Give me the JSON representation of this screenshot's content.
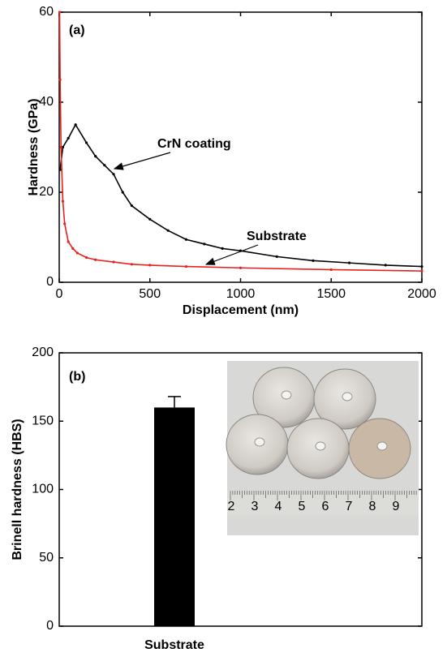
{
  "chart_data": [
    {
      "type": "line",
      "x_label": "Displacement (nm)",
      "y_label": "Hardness (GPa)",
      "annotations": [
        "(a)",
        "CrN coating",
        "Substrate"
      ],
      "xlim": [
        0,
        2000
      ],
      "xticks": [
        0,
        500,
        1000,
        1500,
        2000
      ],
      "ylim": [
        0,
        60
      ],
      "yticks": [
        0,
        20,
        40,
        60
      ],
      "series": [
        {
          "name": "CrN coating",
          "color": "#000000",
          "x": [
            5,
            20,
            50,
            90,
            150,
            200,
            250,
            300,
            350,
            400,
            500,
            600,
            700,
            800,
            900,
            1000,
            1200,
            1400,
            1600,
            1800,
            2000
          ],
          "values": [
            25,
            30,
            32,
            35,
            31,
            28,
            26,
            24,
            20,
            17,
            14,
            11.5,
            9.5,
            8.5,
            7.5,
            7,
            5.7,
            4.8,
            4.3,
            3.8,
            3.5
          ]
        },
        {
          "name": "Substrate",
          "color": "#e8211f",
          "x": [
            2,
            5,
            10,
            20,
            30,
            50,
            75,
            100,
            150,
            200,
            300,
            400,
            500,
            700,
            1000,
            1500,
            2000
          ],
          "values": [
            60,
            45,
            30,
            18,
            13,
            9,
            7.5,
            6.5,
            5.5,
            5,
            4.5,
            4,
            3.8,
            3.5,
            3.2,
            2.8,
            2.5
          ]
        }
      ]
    },
    {
      "type": "bar",
      "y_label": "Brinell hardness (HBS)",
      "annotations": [
        "(b)"
      ],
      "categories": [
        "Substrate"
      ],
      "values": [
        160
      ],
      "errors": [
        8
      ],
      "color": "#000000",
      "ylim": [
        0,
        200
      ],
      "yticks": [
        0,
        50,
        100,
        150,
        200
      ],
      "inset_ruler_labels": [
        2,
        3,
        4,
        5,
        6,
        7,
        8,
        9
      ]
    }
  ]
}
